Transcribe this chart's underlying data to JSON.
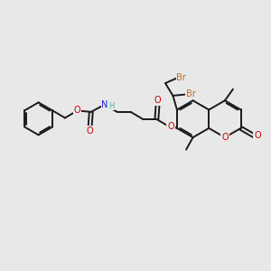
{
  "bg_color": "#e8e8e8",
  "bond_color": "#1a1a1a",
  "bond_lw": 1.4,
  "dbl_sep": 0.055,
  "font_size": 7.0,
  "colors": {
    "O": "#cc0000",
    "N": "#2222dd",
    "Br": "#b87020",
    "C": "#1a1a1a",
    "H": "#4ab0b0"
  },
  "figsize": [
    3.0,
    3.0
  ],
  "dpi": 100
}
